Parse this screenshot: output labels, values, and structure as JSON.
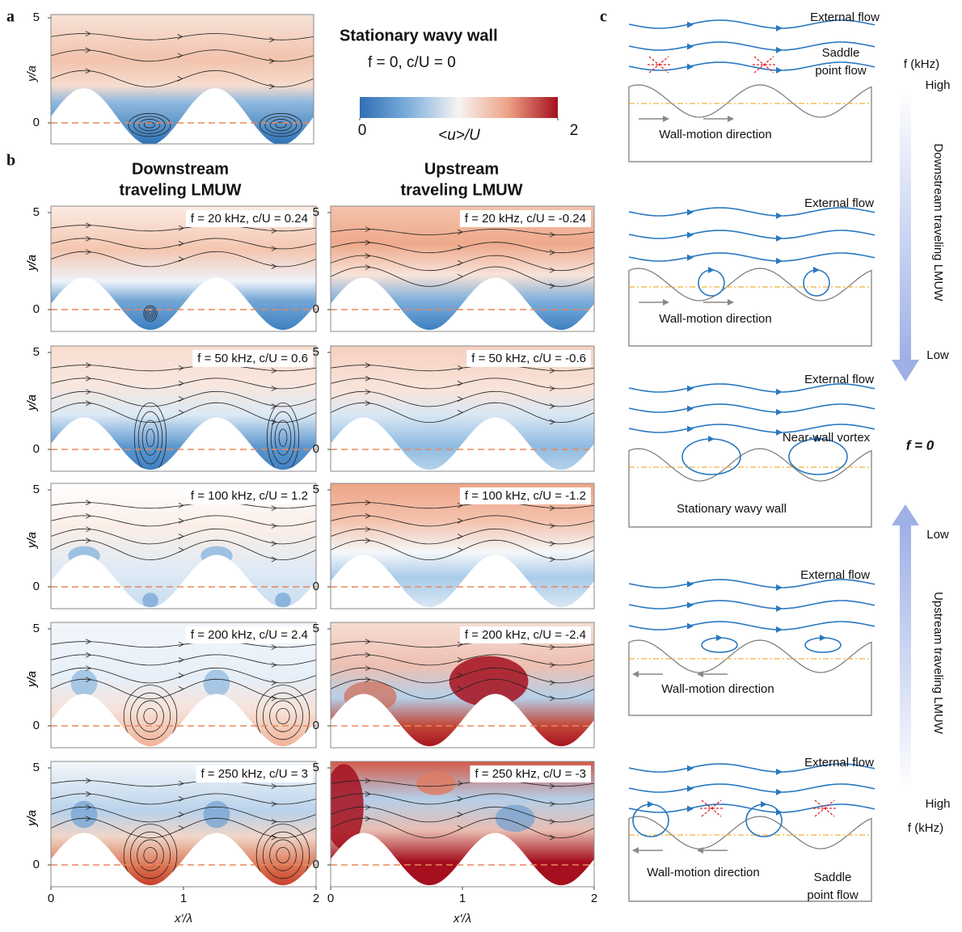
{
  "panel_labels": [
    "a",
    "b",
    "c"
  ],
  "axes": {
    "y_label": "y/a",
    "x_label": "x'/λ",
    "yticks": [
      0,
      5
    ],
    "xticks": [
      0,
      1,
      2
    ]
  },
  "panel_a": {
    "title": "Stationary wavy wall",
    "condition": "f = 0, c/U = 0",
    "colorbar": {
      "label": "<u>/U",
      "ticks": [
        0,
        2
      ]
    }
  },
  "panel_b": {
    "columns": [
      {
        "title": [
          "Downstream",
          "traveling LMUW"
        ],
        "conditions": [
          "f = 20 kHz, c/U = 0.24",
          "f = 50 kHz, c/U = 0.6",
          "f = 100 kHz, c/U = 1.2",
          "f = 200 kHz, c/U = 2.4",
          "f = 250 kHz, c/U = 3"
        ]
      },
      {
        "title": [
          "Upstream",
          "traveling LMUW"
        ],
        "conditions": [
          "f = 20 kHz, c/U = -0.24",
          "f = 50 kHz, c/U = -0.6",
          "f = 100 kHz, c/U = -1.2",
          "f = 200 kHz, c/U = -2.4",
          "f = 250 kHz, c/U = -3"
        ]
      }
    ]
  },
  "panel_c": {
    "schematics": [
      {
        "external_flow": "External flow",
        "saddle": [
          "Saddle",
          "point flow"
        ],
        "wall_motion": "Wall-motion direction"
      },
      {
        "external_flow": "External flow",
        "wall_motion": "Wall-motion direction"
      },
      {
        "external_flow": "External flow",
        "vortex": "Near-wall vortex",
        "wall": "Stationary wavy wall"
      },
      {
        "external_flow": "External flow",
        "wall_motion": "Wall-motion direction"
      },
      {
        "external_flow": "External flow",
        "wall_motion": "Wall-motion direction",
        "saddle": [
          "Saddle",
          "point flow"
        ]
      }
    ],
    "axis": {
      "top_label": "f (kHz)",
      "top_high": "High",
      "down_low": "Low",
      "downstream": "Downstream traveling LMUW",
      "center": "f = 0",
      "up_low": "Low",
      "upstream": "Upstream traveling LMUW",
      "bottom_high": "High",
      "bottom_label": "f (kHz)"
    }
  }
}
